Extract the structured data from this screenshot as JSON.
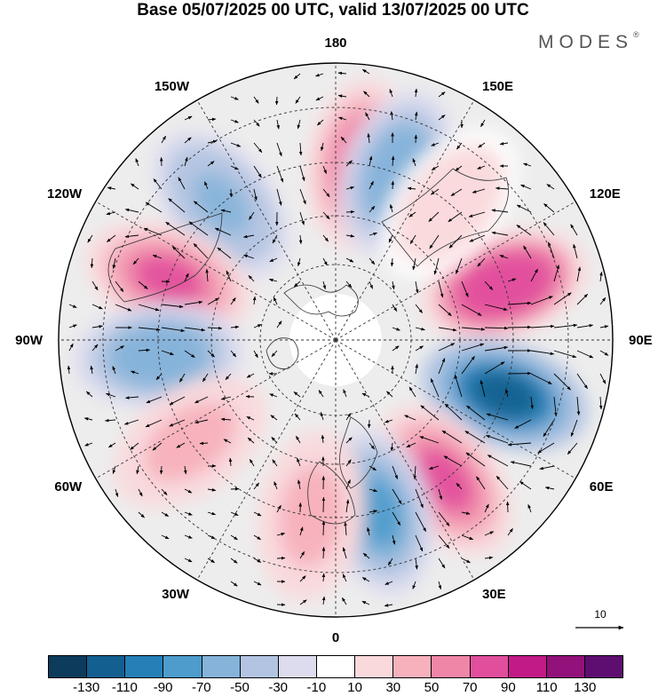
{
  "title": "Base 05/07/2025 00 UTC, valid 13/07/2025 00 UTC",
  "brand": {
    "name": "MODES",
    "mark": "®"
  },
  "map": {
    "projection": "north-polar-stereographic",
    "longitude_labels": [
      {
        "id": "180",
        "text": "180",
        "lon": 180
      },
      {
        "id": "150e",
        "text": "150E",
        "lon": 150
      },
      {
        "id": "120e",
        "text": "120E",
        "lon": 120
      },
      {
        "id": "90e",
        "text": "90E",
        "lon": 90
      },
      {
        "id": "60e",
        "text": "60E",
        "lon": 60
      },
      {
        "id": "30e",
        "text": "30E",
        "lon": 30
      },
      {
        "id": "0",
        "text": "0",
        "lon": 0
      },
      {
        "id": "30w",
        "text": "30W",
        "lon": -30
      },
      {
        "id": "60w",
        "text": "60W",
        "lon": -60
      },
      {
        "id": "90w",
        "text": "90W",
        "lon": -90
      },
      {
        "id": "120w",
        "text": "120W",
        "lon": -120
      },
      {
        "id": "150w",
        "text": "150W",
        "lon": -150
      }
    ],
    "anomaly_centers": [
      {
        "id": "pos-180-north",
        "sign": "positive",
        "lon": 172,
        "intensity": 70
      },
      {
        "id": "neg-155e",
        "sign": "negative",
        "lon": 160,
        "intensity": -60
      },
      {
        "id": "neg-135w",
        "sign": "negative",
        "lon": -140,
        "intensity": -55
      },
      {
        "id": "pos-105w",
        "sign": "positive",
        "lon": -110,
        "intensity": 80
      },
      {
        "id": "neg-90w",
        "sign": "negative",
        "lon": -85,
        "intensity": -65
      },
      {
        "id": "pos-60w",
        "sign": "positive",
        "lon": -55,
        "intensity": 40
      },
      {
        "id": "pos-110e",
        "sign": "positive",
        "lon": 108,
        "intensity": 85
      },
      {
        "id": "neg-75e",
        "sign": "negative",
        "lon": 72,
        "intensity": -110
      },
      {
        "id": "pos-40e",
        "sign": "positive",
        "lon": 38,
        "intensity": 80
      },
      {
        "id": "neg-15e",
        "sign": "negative",
        "lon": 14,
        "intensity": -70
      },
      {
        "id": "pos-10w",
        "sign": "positive",
        "lon": -8,
        "intensity": 40
      },
      {
        "id": "pos-140e-small",
        "sign": "positive",
        "lon": 140,
        "intensity": 20
      }
    ]
  },
  "reference_vector": {
    "label": "10"
  },
  "colorbar": {
    "colors": [
      "#0d3b5c",
      "#135f8f",
      "#2580b8",
      "#4d9ccb",
      "#85b3d9",
      "#b3c4e2",
      "#dcdcee",
      "#ffffff",
      "#fad9dc",
      "#f6b1bd",
      "#ef86a8",
      "#e14f9c",
      "#c21a87",
      "#92117a",
      "#5e0e70"
    ],
    "labels": [
      "-130",
      "-110",
      "-90",
      "-70",
      "-50",
      "-30",
      "-10",
      "10",
      "30",
      "50",
      "70",
      "90",
      "110",
      "130"
    ]
  }
}
